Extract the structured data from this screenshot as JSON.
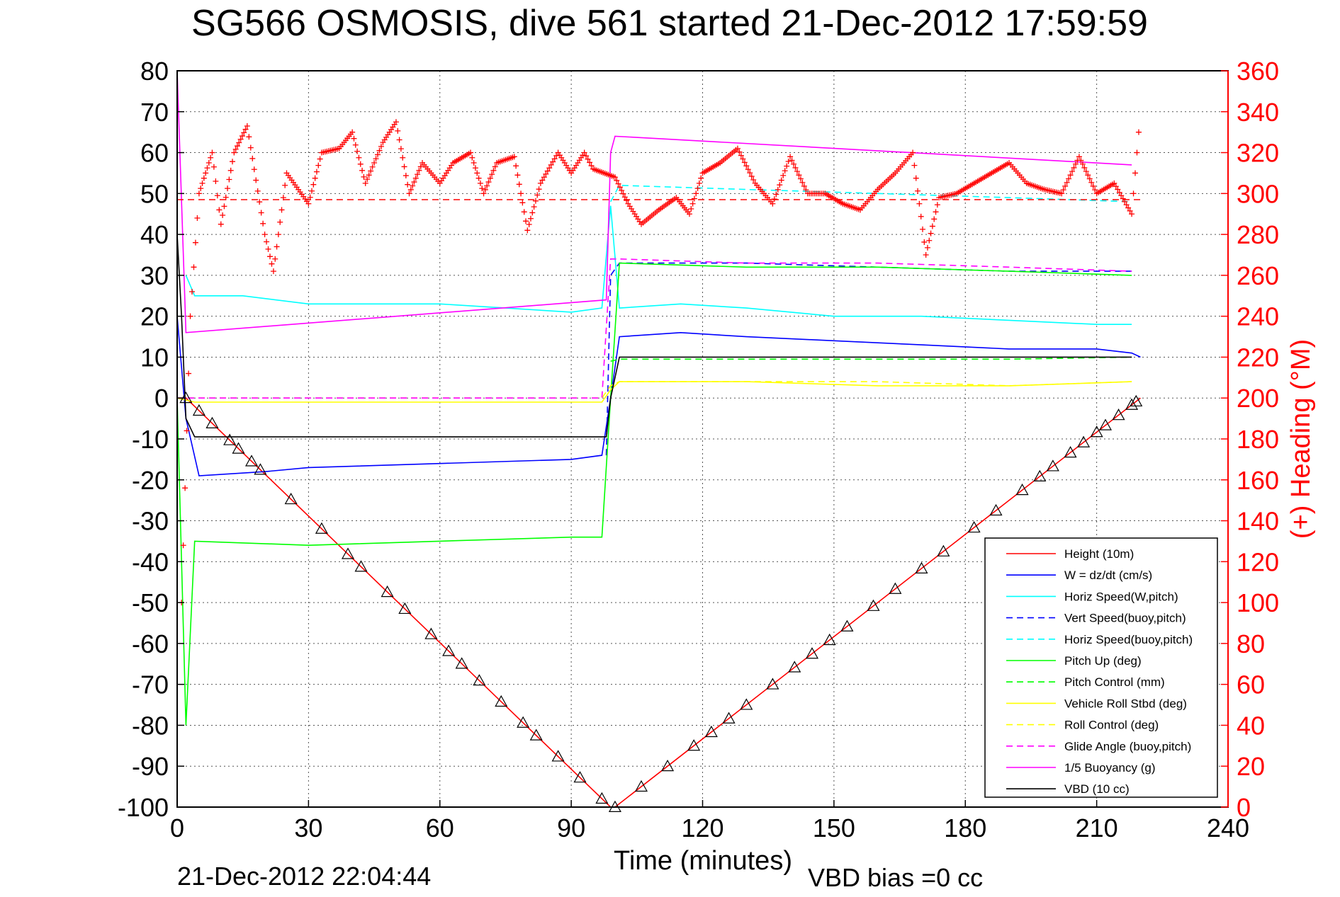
{
  "chart_data": {
    "type": "line",
    "title": "SG566 OSMOSIS, dive 561 started 21-Dec-2012 17:59:59",
    "xlabel": "Time (minutes)",
    "ylabel_left": "",
    "ylabel_right": "(+) Heading (°M)",
    "xlim": [
      0,
      240
    ],
    "ylim_left": [
      -100,
      80
    ],
    "ylim_right": [
      0,
      360
    ],
    "x_ticks": [
      "0",
      "30",
      "60",
      "90",
      "120",
      "150",
      "180",
      "210",
      "240"
    ],
    "y_ticks_left": [
      "80",
      "70",
      "60",
      "50",
      "40",
      "30",
      "20",
      "10",
      "0",
      "-10",
      "-20",
      "-30",
      "-40",
      "-50",
      "-60",
      "-70",
      "-80",
      "-90",
      "-100"
    ],
    "y_ticks_right": [
      "360",
      "340",
      "320",
      "300",
      "280",
      "260",
      "240",
      "220",
      "200",
      "180",
      "160",
      "140",
      "120",
      "100",
      "80",
      "60",
      "40",
      "20",
      "0"
    ],
    "grid": true,
    "legend_position": "bottom-right",
    "footer_left": "21-Dec-2012 22:04:44",
    "footer_right": "VBD bias =0 cc",
    "series": [
      {
        "name": "Height (10m)",
        "color": "#ff0000",
        "style": "solid",
        "x": [
          0,
          2,
          99,
          100,
          220
        ],
        "y": [
          0,
          0,
          -100,
          -100,
          0
        ]
      },
      {
        "name": "W = dz/dt (cm/s)",
        "color": "#0000ff",
        "style": "solid",
        "x": [
          0,
          2,
          5,
          20,
          30,
          60,
          90,
          97,
          99,
          101,
          115,
          130,
          150,
          170,
          190,
          210,
          218,
          220
        ],
        "y": [
          20,
          -5,
          -19,
          -18,
          -17,
          -16,
          -15,
          -14,
          0,
          15,
          16,
          15,
          14,
          13,
          12,
          12,
          11,
          10
        ]
      },
      {
        "name": "Horiz Speed(W,pitch)",
        "color": "#00ffff",
        "style": "solid",
        "x": [
          2,
          4,
          15,
          30,
          60,
          90,
          97,
          99,
          101,
          115,
          130,
          150,
          170,
          190,
          210,
          218
        ],
        "y": [
          30,
          25,
          25,
          23,
          23,
          21,
          22,
          47,
          22,
          23,
          22,
          20,
          20,
          19,
          18,
          18
        ]
      },
      {
        "name": "Vert Speed(buoy,pitch)",
        "color": "#0000ff",
        "style": "dashed",
        "x": [
          98,
          99,
          101,
          130,
          160,
          190,
          218
        ],
        "y": [
          -14,
          30,
          33,
          33,
          32,
          31,
          31
        ]
      },
      {
        "name": "Horiz Speed(buoy,pitch)",
        "color": "#00ffff",
        "style": "dashed",
        "x": [
          99,
          101,
          130,
          160,
          190,
          218
        ],
        "y": [
          48,
          52,
          51,
          50,
          49,
          48
        ]
      },
      {
        "name": "Pitch Up (deg)",
        "color": "#00ff00",
        "style": "solid",
        "x": [
          0,
          2,
          4,
          30,
          60,
          90,
          97,
          99,
          101,
          130,
          160,
          190,
          218
        ],
        "y": [
          0,
          -80,
          -35,
          -36,
          -35,
          -34,
          -34,
          0,
          33,
          32,
          32,
          31,
          30
        ]
      },
      {
        "name": "Pitch Control (mm)",
        "color": "#00ff00",
        "style": "dashed",
        "x": [
          99,
          101,
          130,
          160,
          190,
          218
        ],
        "y": [
          9,
          9.5,
          9.5,
          9.5,
          9.5,
          10
        ]
      },
      {
        "name": "Vehicle Roll Stbd (deg)",
        "color": "#ffff00",
        "style": "solid",
        "x": [
          0,
          4,
          30,
          60,
          90,
          97,
          99,
          101,
          130,
          160,
          190,
          218
        ],
        "y": [
          0,
          -1,
          -1,
          -1,
          -1,
          -1,
          2,
          4,
          4,
          3,
          3,
          4
        ]
      },
      {
        "name": "Roll Control (deg)",
        "color": "#ffff00",
        "style": "dashed",
        "x": [
          0,
          4,
          30,
          60,
          90,
          97,
          99,
          101,
          130,
          160,
          190,
          218
        ],
        "y": [
          0,
          0,
          0,
          0,
          0,
          0,
          3,
          4,
          4,
          4,
          3,
          4
        ]
      },
      {
        "name": "Glide Angle (buoy,pitch)",
        "color": "#ff00ff",
        "style": "dashed",
        "x": [
          0,
          2,
          97,
          99,
          101,
          130,
          160,
          190,
          218
        ],
        "y": [
          0,
          0,
          0,
          34,
          34,
          33,
          33,
          32,
          31
        ]
      },
      {
        "name": "1/5 Buoyancy (g)",
        "color": "#ff00ff",
        "style": "solid",
        "x": [
          0,
          2,
          98,
          99,
          100,
          218
        ],
        "y": [
          80,
          16,
          24,
          60,
          64,
          57
        ]
      },
      {
        "name": "VBD (10 cc)",
        "color": "#000000",
        "style": "solid",
        "x": [
          0,
          1,
          2,
          4,
          98,
          99,
          101,
          218
        ],
        "y": [
          40,
          20,
          -5,
          -9.5,
          -9.5,
          0,
          10,
          10
        ]
      }
    ],
    "heading_series": {
      "name": "(+) Heading (°M)",
      "color": "#ff0000",
      "x": [
        1,
        3,
        5,
        8,
        10,
        13,
        16,
        20,
        22,
        25,
        30,
        33,
        37,
        40,
        43,
        47,
        50,
        53,
        56,
        60,
        63,
        67,
        70,
        73,
        77,
        80,
        83,
        87,
        90,
        93,
        95,
        100,
        103,
        106,
        110,
        114,
        117,
        120,
        124,
        128,
        132,
        136,
        140,
        144,
        148,
        152,
        156,
        160,
        164,
        168,
        171,
        174,
        178,
        182,
        186,
        190,
        194,
        198,
        202,
        206,
        210,
        214,
        218,
        220
      ],
      "y": [
        100,
        240,
        300,
        320,
        285,
        320,
        333,
        280,
        262,
        310,
        295,
        320,
        322,
        330,
        305,
        325,
        335,
        300,
        315,
        305,
        315,
        320,
        300,
        315,
        318,
        282,
        305,
        320,
        310,
        320,
        312,
        308,
        295,
        285,
        292,
        298,
        290,
        310,
        315,
        322,
        305,
        295,
        318,
        300,
        300,
        295,
        292,
        302,
        310,
        320,
        270,
        298,
        300,
        305,
        310,
        315,
        305,
        302,
        300,
        318,
        300,
        305,
        290,
        340
      ],
      "reference_line": 297
    }
  }
}
